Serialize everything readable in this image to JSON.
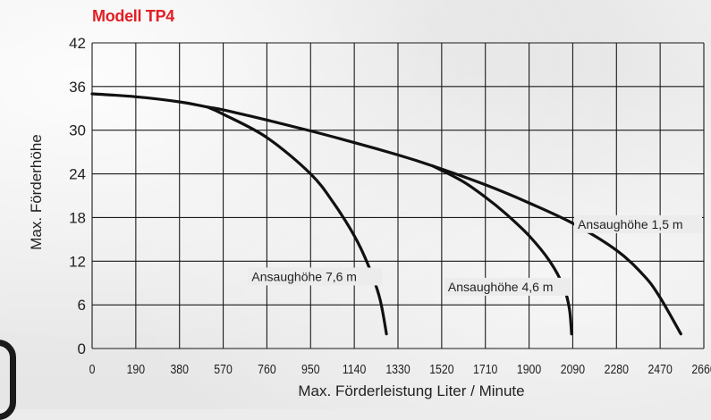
{
  "chart_data": {
    "type": "line",
    "title": "Modell TP4",
    "xlabel": "Max. Förderleistung Liter / Minute",
    "ylabel": "Max. Förderhöhe",
    "xlim": [
      0,
      2660
    ],
    "ylim": [
      0,
      42
    ],
    "x_ticks": [
      0,
      190,
      380,
      570,
      760,
      950,
      1140,
      1330,
      1520,
      1710,
      1900,
      2090,
      2280,
      2470,
      2660
    ],
    "y_ticks": [
      0,
      6,
      12,
      18,
      24,
      30,
      36,
      42
    ],
    "grid": true,
    "series": [
      {
        "name": "Ansaughöhe 1,5 m",
        "points": [
          [
            0,
            35
          ],
          [
            190,
            34.6
          ],
          [
            380,
            33.9
          ],
          [
            500,
            33.2
          ],
          [
            570,
            32.8
          ],
          [
            760,
            31.4
          ],
          [
            950,
            29.9
          ],
          [
            1140,
            28.3
          ],
          [
            1330,
            26.6
          ],
          [
            1480,
            25.1
          ],
          [
            1710,
            22.5
          ],
          [
            1900,
            20.0
          ],
          [
            2090,
            17.2
          ],
          [
            2280,
            13.5
          ],
          [
            2400,
            10.0
          ],
          [
            2470,
            7.0
          ],
          [
            2560,
            2.0
          ]
        ]
      },
      {
        "name": "Ansaughöhe 4,6 m",
        "points": [
          [
            1480,
            25.1
          ],
          [
            1610,
            23.0
          ],
          [
            1710,
            20.8
          ],
          [
            1800,
            18.5
          ],
          [
            1900,
            15.5
          ],
          [
            1990,
            12.0
          ],
          [
            2050,
            8.5
          ],
          [
            2075,
            5.5
          ],
          [
            2085,
            2.0
          ]
        ]
      },
      {
        "name": "Ansaughöhe 7,6 m",
        "points": [
          [
            500,
            33.2
          ],
          [
            570,
            32.2
          ],
          [
            760,
            29.0
          ],
          [
            950,
            24.0
          ],
          [
            1050,
            20.0
          ],
          [
            1140,
            15.5
          ],
          [
            1200,
            11.5
          ],
          [
            1250,
            7.0
          ],
          [
            1280,
            2.0
          ]
        ]
      }
    ],
    "colors": {
      "title": "#e31e24",
      "line": "#111111",
      "grid": "#1a1a1a"
    }
  }
}
